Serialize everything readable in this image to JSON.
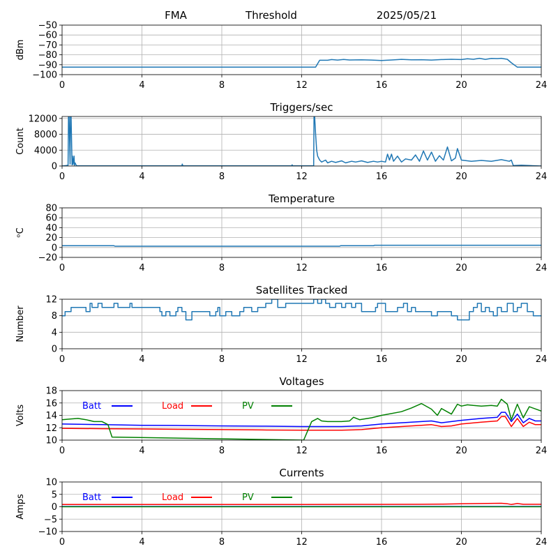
{
  "header": {
    "left": "FMA",
    "center": "Threshold",
    "right": "2025/05/21"
  },
  "colors": {
    "trace": "#1f77b4",
    "batt": "#0000ff",
    "load": "#ff0000",
    "pv": "#008000",
    "grid": "#b0b0b0",
    "axis": "#000000"
  },
  "chart_data": [
    {
      "type": "line",
      "title": "",
      "xlabel": "",
      "ylabel": "dBm",
      "xlim": [
        0,
        24
      ],
      "ylim": [
        -100,
        -50
      ],
      "grid": true,
      "xticks": [
        0,
        4,
        8,
        12,
        16,
        20,
        24
      ],
      "xtick_labels": [
        "0",
        "4",
        "8",
        "12",
        "16",
        "20",
        "24"
      ],
      "yticks": [
        -100,
        -90,
        -80,
        -70,
        -60,
        -50
      ],
      "ytick_labels": [
        "−100",
        "−90",
        "−80",
        "−70",
        "−60",
        "−50"
      ],
      "series": [
        {
          "color": "#1f77b4",
          "x": [
            0,
            12.7,
            12.9,
            13.3,
            13.5,
            13.8,
            14.1,
            14.4,
            15.0,
            15.5,
            16.0,
            16.5,
            17.0,
            17.5,
            18.0,
            18.5,
            19.0,
            19.5,
            20.0,
            20.3,
            20.6,
            20.9,
            21.2,
            21.5,
            21.8,
            22.0,
            22.3,
            22.5,
            22.8,
            24
          ],
          "y": [
            -92.5,
            -92.5,
            -85.5,
            -85.5,
            -84.8,
            -85.3,
            -84.7,
            -85.2,
            -85.0,
            -85.3,
            -85.8,
            -85.2,
            -84.6,
            -85.0,
            -84.9,
            -85.3,
            -84.8,
            -84.5,
            -84.8,
            -84.0,
            -84.5,
            -83.5,
            -84.6,
            -83.6,
            -83.8,
            -83.5,
            -84.5,
            -88.0,
            -92.5,
            -92.5
          ]
        }
      ]
    },
    {
      "type": "line",
      "title": "Triggers/sec",
      "xlabel": "",
      "ylabel": "Count",
      "xlim": [
        0,
        24
      ],
      "ylim": [
        0,
        12500
      ],
      "grid": true,
      "xticks": [
        0,
        4,
        8,
        12,
        16,
        20,
        24
      ],
      "xtick_labels": [
        "0",
        "4",
        "8",
        "12",
        "16",
        "20",
        "24"
      ],
      "yticks": [
        0,
        4000,
        8000,
        12000
      ],
      "ytick_labels": [
        "0",
        "4000",
        "8000",
        "12000"
      ],
      "series": [
        {
          "color": "#1f77b4",
          "x": [
            0,
            0.2,
            0.3,
            0.32,
            0.35,
            0.4,
            0.42,
            0.45,
            0.5,
            0.52,
            0.55,
            0.6,
            0.62,
            0.65,
            0.7,
            0.72,
            0.75,
            0.8,
            1.0,
            2.5,
            5.0,
            6.0,
            6.02,
            6.05,
            8.0,
            11.5,
            11.52,
            11.55,
            12.6,
            12.62,
            12.65,
            12.7,
            12.75,
            12.8,
            12.9,
            13.0,
            13.2,
            13.3,
            13.5,
            13.7,
            14.0,
            14.2,
            14.5,
            14.7,
            15.0,
            15.3,
            15.6,
            15.8,
            16.0,
            16.2,
            16.3,
            16.4,
            16.5,
            16.6,
            16.8,
            17.0,
            17.2,
            17.5,
            17.7,
            17.9,
            18.1,
            18.3,
            18.5,
            18.7,
            18.9,
            19.1,
            19.3,
            19.5,
            19.7,
            19.8,
            20.0,
            20.5,
            21.0,
            21.5,
            22.0,
            22.4,
            22.5,
            22.6,
            23.0,
            24
          ],
          "y": [
            0,
            100,
            200,
            12500,
            12500,
            500,
            12500,
            12500,
            300,
            2500,
            400,
            2500,
            200,
            800,
            300,
            100,
            50,
            50,
            30,
            30,
            30,
            30,
            500,
            30,
            30,
            30,
            300,
            30,
            50,
            12500,
            12500,
            8000,
            4000,
            2500,
            1500,
            1000,
            1500,
            800,
            1200,
            900,
            1300,
            800,
            1200,
            1000,
            1300,
            900,
            1200,
            1000,
            1200,
            1000,
            3000,
            1500,
            3000,
            1200,
            2500,
            1000,
            1800,
            1500,
            2800,
            1200,
            3800,
            1500,
            3500,
            1200,
            2600,
            1500,
            4800,
            1300,
            2000,
            4400,
            1500,
            1200,
            1400,
            1200,
            1600,
            1200,
            1500,
            100,
            200,
            0
          ]
        }
      ]
    },
    {
      "type": "line",
      "title": "Temperature",
      "xlabel": "",
      "ylabel": "ᵒC",
      "xlim": [
        0,
        24
      ],
      "ylim": [
        -20,
        80
      ],
      "grid": true,
      "xticks": [
        0,
        4,
        8,
        12,
        16,
        20,
        24
      ],
      "xtick_labels": [
        "0",
        "4",
        "8",
        "12",
        "16",
        "20",
        "24"
      ],
      "yticks": [
        -20,
        0,
        20,
        40,
        60,
        80
      ],
      "ytick_labels": [
        "−20",
        "0",
        "20",
        "40",
        "60",
        "80"
      ],
      "series": [
        {
          "color": "#1f77b4",
          "x": [
            0,
            2.6,
            2.65,
            13.9,
            13.95,
            15.6,
            15.65,
            24
          ],
          "y": [
            3.5,
            3.5,
            2.5,
            2.5,
            3.5,
            3.5,
            4.5,
            4.5
          ]
        }
      ]
    },
    {
      "type": "line",
      "title": "Satellites Tracked",
      "xlabel": "",
      "ylabel": "Number",
      "xlim": [
        0,
        24
      ],
      "ylim": [
        0,
        12
      ],
      "grid": true,
      "xticks": [
        0,
        4,
        8,
        12,
        16,
        20,
        24
      ],
      "xtick_labels": [
        "0",
        "4",
        "8",
        "12",
        "16",
        "20",
        "24"
      ],
      "yticks": [
        0,
        4,
        8,
        12
      ],
      "ytick_labels": [
        "0",
        "4",
        "8",
        "12"
      ],
      "series": [
        {
          "color": "#1f77b4",
          "step": true,
          "x": [
            0,
            0.15,
            0.4,
            0.45,
            1.2,
            1.4,
            1.5,
            1.8,
            2.0,
            2.3,
            2.6,
            2.8,
            3.2,
            3.4,
            3.5,
            4.0,
            4.6,
            4.9,
            5.0,
            5.2,
            5.4,
            5.7,
            5.8,
            6.0,
            6.2,
            6.5,
            6.8,
            7.0,
            7.4,
            7.7,
            7.8,
            7.9,
            8.2,
            8.5,
            8.9,
            9.1,
            9.5,
            9.8,
            10.2,
            10.5,
            10.8,
            11.2,
            11.4,
            11.7,
            12.3,
            12.6,
            12.8,
            13.0,
            13.2,
            13.4,
            13.7,
            14.0,
            14.2,
            14.5,
            14.7,
            15.0,
            15.5,
            15.7,
            15.8,
            16.2,
            16.6,
            16.8,
            17.1,
            17.3,
            17.5,
            17.7,
            18.0,
            18.3,
            18.5,
            18.8,
            19.0,
            19.5,
            19.8,
            20.4,
            20.6,
            20.8,
            21.0,
            21.2,
            21.4,
            21.6,
            21.8,
            22.0,
            22.3,
            22.6,
            22.8,
            23.0,
            23.3,
            23.6,
            24
          ],
          "y": [
            8,
            9,
            9,
            10,
            9,
            11,
            10,
            11,
            10,
            10,
            11,
            10,
            10,
            11,
            10,
            10,
            10,
            9,
            8,
            9,
            8,
            9,
            10,
            9,
            7,
            9,
            9,
            9,
            8,
            9,
            10,
            8,
            9,
            8,
            9,
            10,
            9,
            10,
            11,
            12,
            10,
            11,
            11,
            11,
            11,
            12,
            11,
            12,
            11,
            10,
            11,
            10,
            11,
            10,
            11,
            9,
            9,
            10,
            11,
            9,
            9,
            10,
            11,
            9,
            10,
            9,
            9,
            9,
            8,
            9,
            9,
            8,
            7,
            9,
            10,
            11,
            9,
            10,
            9,
            8,
            10,
            9,
            11,
            9,
            10,
            11,
            9,
            8,
            8
          ]
        }
      ]
    },
    {
      "type": "line",
      "title": "Voltages",
      "xlabel": "",
      "ylabel": "Volts",
      "xlim": [
        0,
        24
      ],
      "ylim": [
        10,
        18
      ],
      "grid": true,
      "xticks": [
        0,
        4,
        8,
        12,
        16,
        20,
        24
      ],
      "xtick_labels": [
        "0",
        "4",
        "8",
        "12",
        "16",
        "20",
        "24"
      ],
      "yticks": [
        10,
        12,
        14,
        16,
        18
      ],
      "ytick_labels": [
        "10",
        "12",
        "14",
        "16",
        "18"
      ],
      "legend": {
        "placement": "upper-left",
        "entries": [
          "Batt",
          "Load",
          "PV"
        ]
      },
      "series": [
        {
          "name": "Batt",
          "color": "#0000ff",
          "x": [
            0,
            2,
            4,
            6,
            8,
            10,
            12,
            14,
            15,
            16,
            17,
            18,
            18.5,
            19,
            19.5,
            20,
            21,
            21.8,
            22,
            22.2,
            22.5,
            22.8,
            23.1,
            23.4,
            23.7,
            24
          ],
          "y": [
            12.6,
            12.5,
            12.4,
            12.35,
            12.3,
            12.25,
            12.2,
            12.2,
            12.3,
            12.6,
            12.8,
            13.0,
            13.1,
            12.8,
            13.0,
            13.2,
            13.5,
            13.7,
            14.5,
            14.5,
            13.0,
            14.2,
            12.8,
            13.5,
            13.1,
            13.1
          ]
        },
        {
          "name": "Load",
          "color": "#ff0000",
          "x": [
            0,
            2,
            4,
            6,
            8,
            10,
            12,
            14,
            15,
            16,
            17,
            18,
            18.5,
            19,
            19.5,
            20,
            21,
            21.8,
            22,
            22.2,
            22.5,
            22.8,
            23.1,
            23.4,
            23.7,
            24
          ],
          "y": [
            11.9,
            11.85,
            11.8,
            11.75,
            11.7,
            11.65,
            11.6,
            11.6,
            11.7,
            12.0,
            12.2,
            12.4,
            12.5,
            12.2,
            12.3,
            12.6,
            12.9,
            13.1,
            13.8,
            13.8,
            12.2,
            13.5,
            12.2,
            12.9,
            12.5,
            12.5
          ]
        },
        {
          "name": "PV",
          "color": "#008000",
          "x": [
            0,
            0.4,
            0.8,
            1.2,
            1.6,
            2.0,
            2.3,
            2.5,
            12.1,
            12.3,
            12.5,
            12.8,
            13.0,
            13.3,
            13.6,
            14.0,
            14.4,
            14.6,
            14.9,
            15.5,
            16.0,
            17.0,
            17.5,
            18.0,
            18.5,
            18.8,
            19.0,
            19.5,
            19.8,
            20.0,
            20.3,
            20.6,
            21.0,
            21.5,
            21.8,
            22.0,
            22.3,
            22.5,
            22.8,
            23.1,
            23.4,
            24
          ],
          "y": [
            13.3,
            13.4,
            13.5,
            13.3,
            13.0,
            13.0,
            12.5,
            10.5,
            10.0,
            11.5,
            13.0,
            13.5,
            13.1,
            13.0,
            13.0,
            13.0,
            13.1,
            13.7,
            13.3,
            13.6,
            14.0,
            14.6,
            15.2,
            15.9,
            15.0,
            14.0,
            15.1,
            14.2,
            15.8,
            15.5,
            15.7,
            15.6,
            15.5,
            15.6,
            15.5,
            16.6,
            15.8,
            13.3,
            15.8,
            13.6,
            15.4,
            14.7
          ]
        }
      ]
    },
    {
      "type": "line",
      "title": "Currents",
      "xlabel": "",
      "ylabel": "Amps",
      "xlim": [
        0,
        24
      ],
      "ylim": [
        -10,
        10
      ],
      "grid": true,
      "xticks": [
        0,
        4,
        8,
        12,
        16,
        20,
        24
      ],
      "xtick_labels": [
        "0",
        "4",
        "8",
        "12",
        "16",
        "20",
        "24"
      ],
      "yticks": [
        -10,
        -5,
        0,
        5,
        10
      ],
      "ytick_labels": [
        "−10",
        "−5",
        "0",
        "5",
        "10"
      ],
      "legend": {
        "placement": "upper-left",
        "entries": [
          "Batt",
          "Load",
          "PV"
        ]
      },
      "series": [
        {
          "name": "Batt",
          "color": "#0000ff",
          "x": [
            0,
            24
          ],
          "y": [
            0.1,
            0.1
          ]
        },
        {
          "name": "Load",
          "color": "#ff0000",
          "x": [
            0,
            12,
            16,
            18,
            19,
            20,
            21,
            22,
            22.3,
            22.5,
            22.8,
            23.1,
            24
          ],
          "y": [
            0.9,
            0.9,
            0.95,
            1.0,
            1.05,
            1.2,
            1.3,
            1.4,
            1.2,
            0.9,
            1.3,
            1.0,
            1.0
          ]
        },
        {
          "name": "PV",
          "color": "#008000",
          "x": [
            0,
            24
          ],
          "y": [
            0.0,
            0.0
          ]
        }
      ]
    }
  ]
}
